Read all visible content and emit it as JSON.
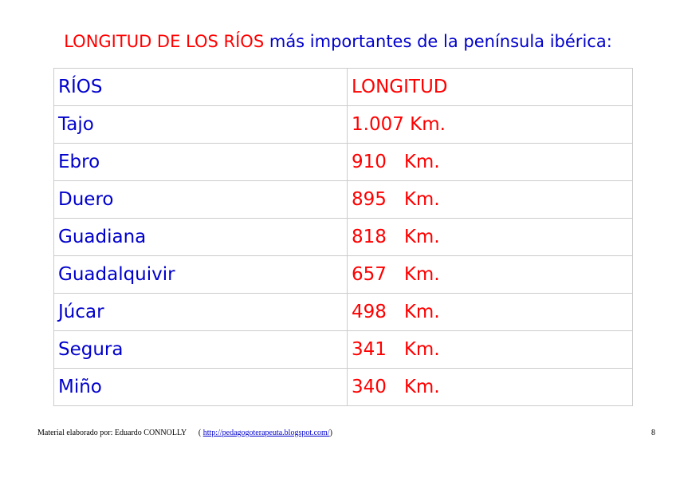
{
  "title": {
    "part1": "LONGITUD DE LOS RÍOS",
    "part2": "más importantes de la península ibérica:"
  },
  "table": {
    "header": [
      "RÍOS",
      "LONGITUD"
    ],
    "rows": [
      [
        "Tajo",
        "1.007 Km."
      ],
      [
        "Ebro",
        "910   Km."
      ],
      [
        "Duero",
        "895   Km."
      ],
      [
        "Guadiana",
        "818   Km."
      ],
      [
        "Guadalquivir",
        "657   Km."
      ],
      [
        "Júcar",
        "498   Km."
      ],
      [
        "Segura",
        "341   Km."
      ],
      [
        "Miño",
        "340   Km."
      ]
    ]
  },
  "footer": {
    "author": "Material elaborado por: Eduardo CONNOLLY",
    "paren_open": "(",
    "link": "http://pedagogoterapeuta.blogspot.com/",
    "paren_close": ")",
    "page": "8"
  }
}
